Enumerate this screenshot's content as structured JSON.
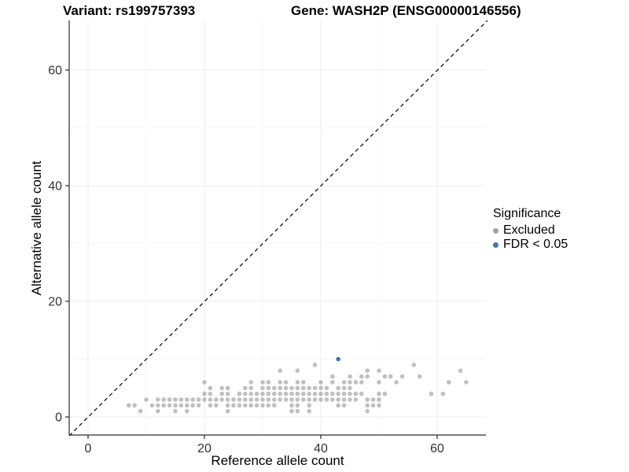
{
  "titles": {
    "variant": "Variant: rs199757393",
    "gene": "Gene: WASH2P (ENSG00000146556)"
  },
  "legend": {
    "title": "Significance",
    "items": [
      {
        "label": "Excluded",
        "color": "#a3a3a3"
      },
      {
        "label": "FDR < 0.05",
        "color": "#4472b2"
      }
    ]
  },
  "identity_line": {
    "style": "dashed",
    "color": "#000000"
  },
  "colors": {
    "excluded_point": "#8c8c8c",
    "significant_point": "#4472b2",
    "axis_line": "#2b2b2b",
    "tick_label": "#333333",
    "grid_major": "#ececec",
    "grid_minor": "#f5f5f5"
  },
  "chart_data": {
    "type": "scatter",
    "title": "Variant: rs199757393 — Gene: WASH2P (ENSG00000146556)",
    "xlabel": "Reference allele count",
    "ylabel": "Alternative allele count",
    "xlim": [
      -3.2,
      68.5
    ],
    "ylim": [
      -3.1,
      68.6
    ],
    "x_ticks": [
      0,
      20,
      40,
      60
    ],
    "x_minor_ticks": [
      10,
      30,
      50
    ],
    "y_ticks": [
      0,
      20,
      40,
      60
    ],
    "y_minor_ticks": [
      10,
      30,
      50
    ],
    "grid": "faint major and minor gridlines",
    "legend_position": "right",
    "reference_line": "y = x dashed diagonal",
    "series": [
      {
        "name": "Excluded",
        "color": "#8c8c8c",
        "opacity": 0.55,
        "points": [
          [
            9,
            1
          ],
          [
            12,
            1
          ],
          [
            15,
            1
          ],
          [
            17,
            1
          ],
          [
            24,
            1
          ],
          [
            35,
            1
          ],
          [
            36,
            1
          ],
          [
            38,
            1
          ],
          [
            48,
            1
          ],
          [
            7,
            2
          ],
          [
            8,
            2
          ],
          [
            11,
            2
          ],
          [
            12,
            2
          ],
          [
            13,
            2
          ],
          [
            14,
            2
          ],
          [
            15,
            2
          ],
          [
            16,
            2
          ],
          [
            17,
            2
          ],
          [
            18,
            2
          ],
          [
            19,
            2
          ],
          [
            21,
            2
          ],
          [
            22,
            2
          ],
          [
            24,
            2
          ],
          [
            25,
            2
          ],
          [
            26,
            2
          ],
          [
            27,
            2
          ],
          [
            28,
            2
          ],
          [
            29,
            2
          ],
          [
            30,
            2
          ],
          [
            31,
            2
          ],
          [
            32,
            2
          ],
          [
            35,
            2
          ],
          [
            36,
            2
          ],
          [
            38,
            2
          ],
          [
            43,
            2
          ],
          [
            44,
            2
          ],
          [
            48,
            2
          ],
          [
            49,
            2
          ],
          [
            50,
            2
          ],
          [
            10,
            3
          ],
          [
            12,
            3
          ],
          [
            13,
            3
          ],
          [
            14,
            3
          ],
          [
            15,
            3
          ],
          [
            16,
            3
          ],
          [
            17,
            3
          ],
          [
            18,
            3
          ],
          [
            19,
            3
          ],
          [
            20,
            3
          ],
          [
            21,
            3
          ],
          [
            22,
            3
          ],
          [
            23,
            3
          ],
          [
            24,
            3
          ],
          [
            25,
            3
          ],
          [
            26,
            3
          ],
          [
            27,
            3
          ],
          [
            28,
            3
          ],
          [
            29,
            3
          ],
          [
            30,
            3
          ],
          [
            31,
            3
          ],
          [
            32,
            3
          ],
          [
            33,
            3
          ],
          [
            34,
            3
          ],
          [
            35,
            3
          ],
          [
            36,
            3
          ],
          [
            37,
            3
          ],
          [
            38,
            3
          ],
          [
            39,
            3
          ],
          [
            40,
            3
          ],
          [
            41,
            3
          ],
          [
            42,
            3
          ],
          [
            43,
            3
          ],
          [
            44,
            3
          ],
          [
            45,
            3
          ],
          [
            46,
            3
          ],
          [
            48,
            3
          ],
          [
            49,
            3
          ],
          [
            50,
            3
          ],
          [
            20,
            4
          ],
          [
            21,
            4
          ],
          [
            23,
            4
          ],
          [
            24,
            4
          ],
          [
            26,
            4
          ],
          [
            27,
            4
          ],
          [
            28,
            4
          ],
          [
            29,
            4
          ],
          [
            30,
            4
          ],
          [
            31,
            4
          ],
          [
            32,
            4
          ],
          [
            33,
            4
          ],
          [
            34,
            4
          ],
          [
            35,
            4
          ],
          [
            36,
            4
          ],
          [
            37,
            4
          ],
          [
            38,
            4
          ],
          [
            39,
            4
          ],
          [
            40,
            4
          ],
          [
            41,
            4
          ],
          [
            42,
            4
          ],
          [
            43,
            4
          ],
          [
            44,
            4
          ],
          [
            45,
            4
          ],
          [
            46,
            4
          ],
          [
            47,
            4
          ],
          [
            50,
            4
          ],
          [
            51,
            4
          ],
          [
            59,
            4
          ],
          [
            61,
            4
          ],
          [
            21,
            5
          ],
          [
            23,
            5
          ],
          [
            24,
            5
          ],
          [
            27,
            5
          ],
          [
            28,
            5
          ],
          [
            30,
            5
          ],
          [
            31,
            5
          ],
          [
            32,
            5
          ],
          [
            33,
            5
          ],
          [
            34,
            5
          ],
          [
            35,
            5
          ],
          [
            36,
            5
          ],
          [
            37,
            5
          ],
          [
            38,
            5
          ],
          [
            39,
            5
          ],
          [
            40,
            5
          ],
          [
            41,
            5
          ],
          [
            43,
            5
          ],
          [
            44,
            5
          ],
          [
            45,
            5
          ],
          [
            20,
            6
          ],
          [
            28,
            6
          ],
          [
            30,
            6
          ],
          [
            31,
            6
          ],
          [
            33,
            6
          ],
          [
            34,
            6
          ],
          [
            36,
            6
          ],
          [
            37,
            6
          ],
          [
            40,
            6
          ],
          [
            42,
            6
          ],
          [
            44,
            6
          ],
          [
            45,
            6
          ],
          [
            46,
            6
          ],
          [
            47,
            6
          ],
          [
            50,
            6
          ],
          [
            53,
            6
          ],
          [
            62,
            6
          ],
          [
            65,
            6
          ],
          [
            42,
            7
          ],
          [
            45,
            7
          ],
          [
            47,
            7
          ],
          [
            48,
            7
          ],
          [
            51,
            7
          ],
          [
            52,
            7
          ],
          [
            54,
            7
          ],
          [
            57,
            7
          ],
          [
            33,
            8
          ],
          [
            36,
            8
          ],
          [
            48,
            8
          ],
          [
            50,
            8
          ],
          [
            64,
            8
          ],
          [
            39,
            9
          ],
          [
            56,
            9
          ]
        ]
      },
      {
        "name": "FDR < 0.05",
        "color": "#4472b2",
        "opacity": 1,
        "points": [
          [
            43,
            10
          ]
        ]
      }
    ]
  }
}
